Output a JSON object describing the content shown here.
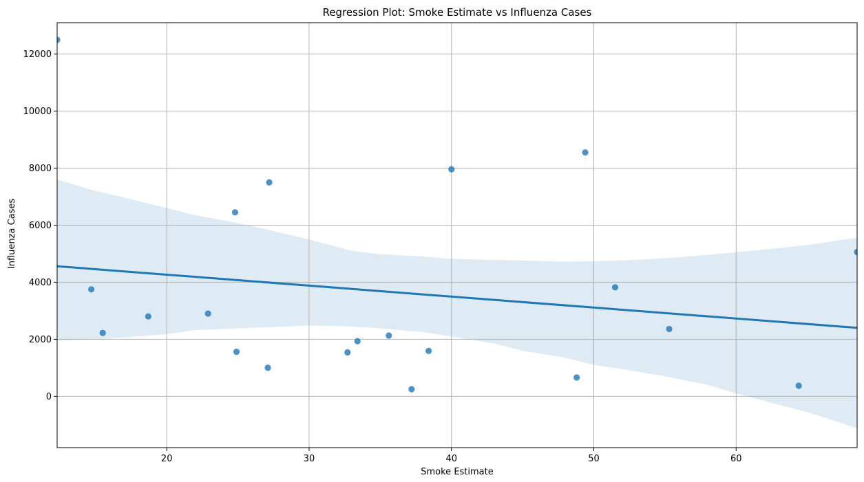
{
  "chart_data": {
    "type": "scatter",
    "title": "Regression Plot: Smoke Estimate vs Influenza Cases",
    "xlabel": "Smoke Estimate",
    "ylabel": "Influenza Cases",
    "xlim": [
      12.3,
      68.5
    ],
    "ylim": [
      -1800,
      13100
    ],
    "xticks": [
      20,
      30,
      40,
      50,
      60
    ],
    "yticks": [
      0,
      2000,
      4000,
      6000,
      8000,
      10000,
      12000
    ],
    "xtick_labels": [
      "20",
      "30",
      "40",
      "50",
      "60"
    ],
    "ytick_labels": [
      "0",
      "2000",
      "4000",
      "6000",
      "8000",
      "10000",
      "12000"
    ],
    "grid": true,
    "legend": "none",
    "colors": {
      "points": "#1f77b4",
      "line": "#1f77b4",
      "band": "#1f77b4",
      "grid": "#b0b0b0",
      "axis": "#000000"
    },
    "series": [
      {
        "x": [
          12.3,
          14.7,
          15.5,
          18.7,
          22.9,
          24.8,
          24.9,
          27.1,
          27.2,
          32.7,
          33.4,
          35.6,
          37.2,
          38.4,
          40.0,
          48.8,
          49.4,
          51.5,
          55.3,
          64.4,
          68.5
        ],
        "y": [
          12500,
          3750,
          2220,
          2800,
          2900,
          6450,
          1560,
          1000,
          7500,
          1540,
          1930,
          2130,
          250,
          1590,
          7960,
          660,
          8550,
          3820,
          2360,
          370,
          5060
        ]
      }
    ],
    "regression": {
      "line": {
        "x": [
          12.3,
          68.5
        ],
        "y": [
          4560,
          2400
        ]
      },
      "ci_upper": {
        "x": [
          12.3,
          15,
          18,
          20,
          22,
          25,
          27,
          30,
          33,
          35,
          38,
          40,
          43,
          45,
          48,
          50,
          52,
          55,
          58,
          60,
          63,
          65,
          68.5
        ],
        "y": [
          7600,
          7200,
          6850,
          6600,
          6350,
          6080,
          5850,
          5500,
          5100,
          4980,
          4900,
          4820,
          4780,
          4760,
          4720,
          4740,
          4760,
          4840,
          4960,
          5050,
          5200,
          5300,
          5560
        ]
      },
      "ci_lower": {
        "x": [
          12.3,
          15,
          18,
          20,
          22,
          25,
          27,
          30,
          33,
          35,
          38,
          40,
          43,
          45,
          48,
          50,
          52,
          55,
          58,
          60,
          63,
          65,
          68.5
        ],
        "y": [
          1950,
          2000,
          2100,
          2180,
          2320,
          2380,
          2420,
          2480,
          2450,
          2380,
          2250,
          2100,
          1850,
          1600,
          1350,
          1100,
          950,
          700,
          400,
          100,
          -300,
          -550,
          -1120
        ]
      }
    }
  }
}
